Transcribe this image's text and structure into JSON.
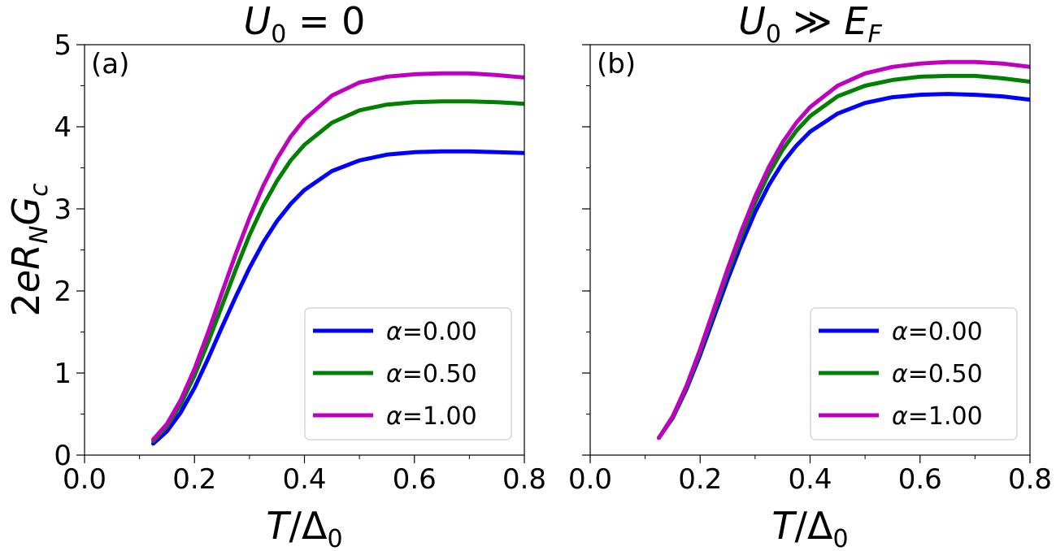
{
  "chart_data": [
    {
      "type": "line",
      "panel_label": "(a)",
      "title_parts": {
        "main": "U",
        "sub": "0",
        "rest": " = 0"
      },
      "xlabel_parts": {
        "main": "T/Δ",
        "sub": "0"
      },
      "ylabel_parts": {
        "pre": "2eR",
        "sub1": "N",
        "mid": "G",
        "sub2": "c"
      },
      "xlim": [
        0.0,
        0.8
      ],
      "ylim": [
        0,
        5
      ],
      "xticks": [
        0.0,
        0.2,
        0.4,
        0.6,
        0.8
      ],
      "xtick_labels": [
        "0.0",
        "0.2",
        "0.4",
        "0.6",
        "0.8"
      ],
      "yticks": [
        0,
        1,
        2,
        3,
        4,
        5
      ],
      "ytick_labels": [
        "0",
        "1",
        "2",
        "3",
        "4",
        "5"
      ],
      "legend_position": "lower-right",
      "x": [
        0.125,
        0.15,
        0.175,
        0.2,
        0.225,
        0.25,
        0.275,
        0.3,
        0.325,
        0.35,
        0.375,
        0.4,
        0.45,
        0.5,
        0.55,
        0.6,
        0.65,
        0.7,
        0.75,
        0.8
      ],
      "series": [
        {
          "name": "α=0.00",
          "color": "#0000ff",
          "values": [
            0.14,
            0.29,
            0.52,
            0.82,
            1.18,
            1.56,
            1.93,
            2.28,
            2.59,
            2.85,
            3.06,
            3.23,
            3.46,
            3.59,
            3.66,
            3.69,
            3.7,
            3.7,
            3.69,
            3.68
          ]
        },
        {
          "name": "α=0.50",
          "color": "#008000",
          "values": [
            0.17,
            0.35,
            0.62,
            0.97,
            1.38,
            1.82,
            2.26,
            2.68,
            3.04,
            3.34,
            3.59,
            3.78,
            4.05,
            4.2,
            4.27,
            4.3,
            4.31,
            4.31,
            4.3,
            4.28
          ]
        },
        {
          "name": "α=1.00",
          "color": "#bf00bf",
          "values": [
            0.19,
            0.38,
            0.67,
            1.05,
            1.5,
            1.98,
            2.45,
            2.89,
            3.28,
            3.61,
            3.88,
            4.09,
            4.38,
            4.54,
            4.61,
            4.64,
            4.65,
            4.65,
            4.63,
            4.6
          ]
        }
      ]
    },
    {
      "type": "line",
      "panel_label": "(b)",
      "title_parts": {
        "main": "U",
        "sub": "0",
        "rest": " ≫ ",
        "main2": "E",
        "sub2": "F"
      },
      "xlabel_parts": {
        "main": "T/Δ",
        "sub": "0"
      },
      "xlim": [
        0.0,
        0.8
      ],
      "ylim": [
        0,
        5
      ],
      "xticks": [
        0.0,
        0.2,
        0.4,
        0.6,
        0.8
      ],
      "xtick_labels": [
        "0.0",
        "0.2",
        "0.4",
        "0.6",
        "0.8"
      ],
      "yticks": [
        0,
        1,
        2,
        3,
        4,
        5
      ],
      "legend_position": "lower-right",
      "x": [
        0.125,
        0.15,
        0.175,
        0.2,
        0.225,
        0.25,
        0.275,
        0.3,
        0.325,
        0.35,
        0.375,
        0.4,
        0.45,
        0.5,
        0.55,
        0.6,
        0.65,
        0.7,
        0.75,
        0.8
      ],
      "series": [
        {
          "name": "α=0.00",
          "color": "#0000ff",
          "values": [
            0.21,
            0.45,
            0.8,
            1.22,
            1.68,
            2.14,
            2.57,
            2.96,
            3.29,
            3.56,
            3.77,
            3.94,
            4.16,
            4.29,
            4.36,
            4.39,
            4.4,
            4.39,
            4.37,
            4.33
          ]
        },
        {
          "name": "α=0.50",
          "color": "#008000",
          "values": [
            0.21,
            0.46,
            0.82,
            1.26,
            1.74,
            2.22,
            2.67,
            3.08,
            3.43,
            3.72,
            3.95,
            4.13,
            4.37,
            4.5,
            4.57,
            4.61,
            4.62,
            4.62,
            4.59,
            4.55
          ]
        },
        {
          "name": "α=1.00",
          "color": "#bf00bf",
          "values": [
            0.21,
            0.47,
            0.84,
            1.29,
            1.78,
            2.27,
            2.73,
            3.15,
            3.51,
            3.81,
            4.05,
            4.24,
            4.5,
            4.65,
            4.73,
            4.77,
            4.79,
            4.79,
            4.77,
            4.73
          ]
        }
      ]
    }
  ]
}
